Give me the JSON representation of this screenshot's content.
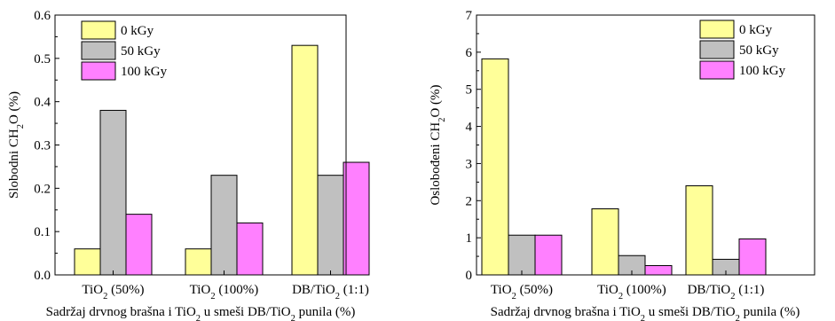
{
  "chart_data": [
    {
      "type": "bar",
      "categories": [
        "TiO2 (50%)",
        "TiO2 (100%)",
        "DB/TiO2 (1:1)"
      ],
      "category_labels": [
        [
          "TiO",
          "2",
          " (50%)"
        ],
        [
          "TiO",
          "2",
          " (100%)"
        ],
        [
          "DB/TiO",
          "2",
          " (1:1)"
        ]
      ],
      "series": [
        {
          "name": "0 kGy",
          "values": [
            0.06,
            0.06,
            0.53
          ],
          "color": "#ffff99"
        },
        {
          "name": "50 kGy",
          "values": [
            0.38,
            0.23,
            0.23
          ],
          "color": "#c0c0c0"
        },
        {
          "name": "100 kGy",
          "values": [
            0.14,
            0.12,
            0.26
          ],
          "color": "#ff80ff"
        }
      ],
      "ylim": [
        0,
        0.6
      ],
      "yticks": [
        "0.0",
        "0.1",
        "0.2",
        "0.3",
        "0.4",
        "0.5",
        "0.6"
      ],
      "ylabel_parts": [
        "Slobodni CH",
        "2",
        "O (%)"
      ],
      "xlabel_parts": [
        "Sadržaj drvnog brašna i TiO",
        "2",
        " u smeši DB/TiO",
        "2",
        " punila (%)"
      ],
      "legend": "top-left"
    },
    {
      "type": "bar",
      "categories": [
        "TiO2 (50%)",
        "TiO2 (100%)",
        "DB/TiO2 (1:1)"
      ],
      "category_labels": [
        [
          "TiO",
          "2",
          " (50%)"
        ],
        [
          "TiO",
          "2",
          " (100%)"
        ],
        [
          "DB/TiO",
          "2",
          " (1:1)"
        ]
      ],
      "series": [
        {
          "name": "0 kGy",
          "values": [
            5.82,
            1.78,
            2.4
          ],
          "color": "#ffff99"
        },
        {
          "name": "50 kGy",
          "values": [
            1.07,
            0.52,
            0.42
          ],
          "color": "#c0c0c0"
        },
        {
          "name": "100 kGy",
          "values": [
            1.07,
            0.25,
            0.97
          ],
          "color": "#ff80ff"
        }
      ],
      "ylim": [
        0,
        7
      ],
      "yticks": [
        "0",
        "1",
        "2",
        "3",
        "4",
        "5",
        "6",
        "7"
      ],
      "ylabel_parts": [
        "Oslobođeni CH",
        "2",
        "O (%)"
      ],
      "xlabel_parts": [
        "Sadržaj drvnog brašna i TiO",
        "2",
        " u smeši DB/TiO",
        "2",
        " punila (%)"
      ],
      "legend": "top-right"
    }
  ]
}
